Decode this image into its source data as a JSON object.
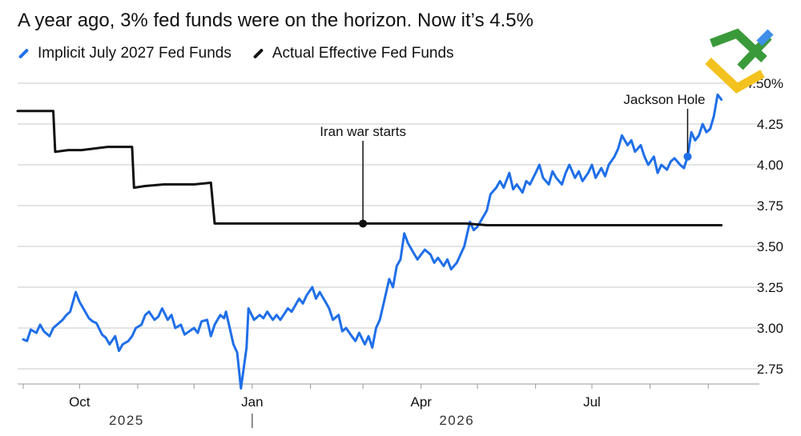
{
  "title": "A year ago, 3% fed funds were on the horizon. Now it’s 4.5%",
  "legend": [
    {
      "label": "Implicit July 2027 Fed Funds",
      "color": "#1f6fe8"
    },
    {
      "label": "Actual Effective Fed Funds",
      "color": "#111111"
    }
  ],
  "chart_data": {
    "type": "line",
    "y_axis": {
      "position": "right",
      "ticks": [
        2.75,
        3.0,
        3.25,
        3.5,
        3.75,
        4.0,
        4.25,
        4.5
      ],
      "tick_labels": [
        "2.75",
        "3.00",
        "3.25",
        "3.50",
        "3.75",
        "4.00",
        "4.25",
        "4.50%"
      ],
      "range": [
        2.62,
        4.45
      ]
    },
    "x_axis": {
      "range": [
        "2025-08-29",
        "2026-09-12"
      ],
      "month_ticks": [
        "2025-09-01",
        "2025-10-01",
        "2025-11-01",
        "2025-12-01",
        "2026-01-01",
        "2026-02-01",
        "2026-03-01",
        "2026-04-01",
        "2026-05-01",
        "2026-06-01",
        "2026-07-01",
        "2026-08-01",
        "2026-09-01"
      ],
      "labels": [
        {
          "date": "2025-10-01",
          "text": "Oct"
        },
        {
          "date": "2026-01-01",
          "text": "Jan"
        },
        {
          "date": "2026-04-01",
          "text": "Apr"
        },
        {
          "date": "2026-07-01",
          "text": "Jul"
        }
      ],
      "years": [
        {
          "date": "2025-10-26",
          "text": "2025"
        },
        {
          "date": "2026-04-20",
          "text": "2026"
        }
      ],
      "year_divider": "2026-01-01"
    },
    "grid": "horizontal",
    "series": [
      {
        "name": "Implicit July 2027 Fed Funds",
        "color": "#1f6fe8",
        "points": [
          [
            "2025-09-01",
            2.93
          ],
          [
            "2025-09-03",
            2.92
          ],
          [
            "2025-09-05",
            2.99
          ],
          [
            "2025-09-08",
            2.97
          ],
          [
            "2025-09-10",
            3.02
          ],
          [
            "2025-09-12",
            2.98
          ],
          [
            "2025-09-15",
            2.95
          ],
          [
            "2025-09-17",
            3.0
          ],
          [
            "2025-09-19",
            3.02
          ],
          [
            "2025-09-22",
            3.05
          ],
          [
            "2025-09-24",
            3.08
          ],
          [
            "2025-09-26",
            3.1
          ],
          [
            "2025-09-29",
            3.22
          ],
          [
            "2025-10-01",
            3.16
          ],
          [
            "2025-10-03",
            3.12
          ],
          [
            "2025-10-06",
            3.06
          ],
          [
            "2025-10-08",
            3.04
          ],
          [
            "2025-10-10",
            3.03
          ],
          [
            "2025-10-13",
            2.96
          ],
          [
            "2025-10-15",
            2.94
          ],
          [
            "2025-10-17",
            2.9
          ],
          [
            "2025-10-20",
            2.95
          ],
          [
            "2025-10-22",
            2.86
          ],
          [
            "2025-10-24",
            2.9
          ],
          [
            "2025-10-27",
            2.92
          ],
          [
            "2025-10-29",
            2.95
          ],
          [
            "2025-10-31",
            3.0
          ],
          [
            "2025-11-03",
            3.02
          ],
          [
            "2025-11-05",
            3.08
          ],
          [
            "2025-11-07",
            3.1
          ],
          [
            "2025-11-10",
            3.05
          ],
          [
            "2025-11-12",
            3.07
          ],
          [
            "2025-11-14",
            3.12
          ],
          [
            "2025-11-17",
            3.05
          ],
          [
            "2025-11-19",
            3.08
          ],
          [
            "2025-11-21",
            3.0
          ],
          [
            "2025-11-24",
            3.02
          ],
          [
            "2025-11-26",
            2.96
          ],
          [
            "2025-12-01",
            3.0
          ],
          [
            "2025-12-03",
            2.97
          ],
          [
            "2025-12-05",
            3.04
          ],
          [
            "2025-12-08",
            3.05
          ],
          [
            "2025-12-10",
            2.95
          ],
          [
            "2025-12-12",
            3.02
          ],
          [
            "2025-12-15",
            3.08
          ],
          [
            "2025-12-17",
            3.06
          ],
          [
            "2025-12-18",
            3.1
          ],
          [
            "2025-12-20",
            3.0
          ],
          [
            "2025-12-22",
            2.9
          ],
          [
            "2025-12-24",
            2.85
          ],
          [
            "2025-12-26",
            2.63
          ],
          [
            "2025-12-29",
            2.88
          ],
          [
            "2025-12-30",
            3.12
          ],
          [
            "2026-01-02",
            3.05
          ],
          [
            "2026-01-05",
            3.08
          ],
          [
            "2026-01-07",
            3.06
          ],
          [
            "2026-01-09",
            3.1
          ],
          [
            "2026-01-12",
            3.05
          ],
          [
            "2026-01-14",
            3.08
          ],
          [
            "2026-01-16",
            3.05
          ],
          [
            "2026-01-20",
            3.12
          ],
          [
            "2026-01-22",
            3.1
          ],
          [
            "2026-01-26",
            3.18
          ],
          [
            "2026-01-28",
            3.15
          ],
          [
            "2026-01-30",
            3.2
          ],
          [
            "2026-02-02",
            3.25
          ],
          [
            "2026-02-04",
            3.18
          ],
          [
            "2026-02-06",
            3.22
          ],
          [
            "2026-02-09",
            3.16
          ],
          [
            "2026-02-11",
            3.12
          ],
          [
            "2026-02-13",
            3.05
          ],
          [
            "2026-02-16",
            3.08
          ],
          [
            "2026-02-18",
            2.98
          ],
          [
            "2026-02-20",
            3.0
          ],
          [
            "2026-02-23",
            2.95
          ],
          [
            "2026-02-25",
            2.92
          ],
          [
            "2026-02-27",
            2.97
          ],
          [
            "2026-03-02",
            2.9
          ],
          [
            "2026-03-04",
            2.95
          ],
          [
            "2026-03-06",
            2.88
          ],
          [
            "2026-03-08",
            3.0
          ],
          [
            "2026-03-10",
            3.05
          ],
          [
            "2026-03-12",
            3.15
          ],
          [
            "2026-03-15",
            3.3
          ],
          [
            "2026-03-17",
            3.25
          ],
          [
            "2026-03-19",
            3.38
          ],
          [
            "2026-03-21",
            3.42
          ],
          [
            "2026-03-23",
            3.58
          ],
          [
            "2026-03-25",
            3.52
          ],
          [
            "2026-03-27",
            3.48
          ],
          [
            "2026-03-30",
            3.42
          ],
          [
            "2026-04-01",
            3.45
          ],
          [
            "2026-04-03",
            3.48
          ],
          [
            "2026-04-06",
            3.45
          ],
          [
            "2026-04-08",
            3.4
          ],
          [
            "2026-04-10",
            3.43
          ],
          [
            "2026-04-13",
            3.38
          ],
          [
            "2026-04-15",
            3.42
          ],
          [
            "2026-04-17",
            3.36
          ],
          [
            "2026-04-20",
            3.4
          ],
          [
            "2026-04-22",
            3.45
          ],
          [
            "2026-04-24",
            3.5
          ],
          [
            "2026-04-27",
            3.65
          ],
          [
            "2026-04-29",
            3.6
          ],
          [
            "2026-05-01",
            3.62
          ],
          [
            "2026-05-04",
            3.68
          ],
          [
            "2026-05-06",
            3.72
          ],
          [
            "2026-05-08",
            3.82
          ],
          [
            "2026-05-11",
            3.86
          ],
          [
            "2026-05-13",
            3.9
          ],
          [
            "2026-05-15",
            3.86
          ],
          [
            "2026-05-18",
            3.95
          ],
          [
            "2026-05-20",
            3.85
          ],
          [
            "2026-05-22",
            3.88
          ],
          [
            "2026-05-25",
            3.83
          ],
          [
            "2026-05-27",
            3.9
          ],
          [
            "2026-05-29",
            3.88
          ],
          [
            "2026-06-01",
            3.95
          ],
          [
            "2026-06-03",
            4.0
          ],
          [
            "2026-06-05",
            3.92
          ],
          [
            "2026-06-08",
            3.88
          ],
          [
            "2026-06-10",
            3.96
          ],
          [
            "2026-06-12",
            3.92
          ],
          [
            "2026-06-15",
            3.88
          ],
          [
            "2026-06-17",
            3.95
          ],
          [
            "2026-06-19",
            4.0
          ],
          [
            "2026-06-22",
            3.92
          ],
          [
            "2026-06-24",
            3.96
          ],
          [
            "2026-06-26",
            3.9
          ],
          [
            "2026-06-29",
            3.95
          ],
          [
            "2026-07-01",
            4.0
          ],
          [
            "2026-07-03",
            3.92
          ],
          [
            "2026-07-06",
            3.98
          ],
          [
            "2026-07-08",
            3.93
          ],
          [
            "2026-07-10",
            4.0
          ],
          [
            "2026-07-13",
            4.05
          ],
          [
            "2026-07-15",
            4.1
          ],
          [
            "2026-07-17",
            4.18
          ],
          [
            "2026-07-20",
            4.12
          ],
          [
            "2026-07-22",
            4.15
          ],
          [
            "2026-07-24",
            4.08
          ],
          [
            "2026-07-27",
            4.12
          ],
          [
            "2026-07-29",
            4.05
          ],
          [
            "2026-07-31",
            4.0
          ],
          [
            "2026-08-03",
            4.05
          ],
          [
            "2026-08-05",
            3.95
          ],
          [
            "2026-08-07",
            4.0
          ],
          [
            "2026-08-10",
            3.97
          ],
          [
            "2026-08-12",
            4.02
          ],
          [
            "2026-08-14",
            4.04
          ],
          [
            "2026-08-17",
            4.0
          ],
          [
            "2026-08-19",
            3.98
          ],
          [
            "2026-08-21",
            4.05
          ],
          [
            "2026-08-23",
            4.2
          ],
          [
            "2026-08-25",
            4.15
          ],
          [
            "2026-08-27",
            4.18
          ],
          [
            "2026-08-29",
            4.25
          ],
          [
            "2026-08-31",
            4.2
          ],
          [
            "2026-09-02",
            4.22
          ],
          [
            "2026-09-04",
            4.3
          ],
          [
            "2026-09-06",
            4.43
          ],
          [
            "2026-09-08",
            4.4
          ]
        ]
      },
      {
        "name": "Actual Effective Fed Funds",
        "color": "#111111",
        "points": [
          [
            "2025-08-29",
            4.33
          ],
          [
            "2025-09-17",
            4.33
          ],
          [
            "2025-09-18",
            4.08
          ],
          [
            "2025-09-25",
            4.09
          ],
          [
            "2025-10-02",
            4.09
          ],
          [
            "2025-10-09",
            4.1
          ],
          [
            "2025-10-16",
            4.11
          ],
          [
            "2025-10-29",
            4.11
          ],
          [
            "2025-10-30",
            3.86
          ],
          [
            "2025-11-05",
            3.87
          ],
          [
            "2025-11-15",
            3.88
          ],
          [
            "2025-12-01",
            3.88
          ],
          [
            "2025-12-10",
            3.89
          ],
          [
            "2025-12-12",
            3.64
          ],
          [
            "2026-01-15",
            3.64
          ],
          [
            "2026-03-01",
            3.64
          ],
          [
            "2026-04-25",
            3.64
          ],
          [
            "2026-05-06",
            3.63
          ],
          [
            "2026-05-20",
            3.63
          ],
          [
            "2026-06-10",
            3.63
          ],
          [
            "2026-06-20",
            3.63
          ],
          [
            "2026-07-01",
            3.63
          ],
          [
            "2026-07-12",
            3.63
          ],
          [
            "2026-07-20",
            3.63
          ],
          [
            "2026-08-10",
            3.63
          ],
          [
            "2026-09-08",
            3.63
          ]
        ]
      }
    ],
    "annotations": [
      {
        "text": "Iran war starts",
        "date": "2026-03-01",
        "value": 3.64,
        "series": "Actual Effective Fed Funds"
      },
      {
        "text": "Jackson Hole",
        "date": "2026-08-21",
        "value": 4.05,
        "series": "Implicit July 2027 Fed Funds"
      }
    ]
  }
}
